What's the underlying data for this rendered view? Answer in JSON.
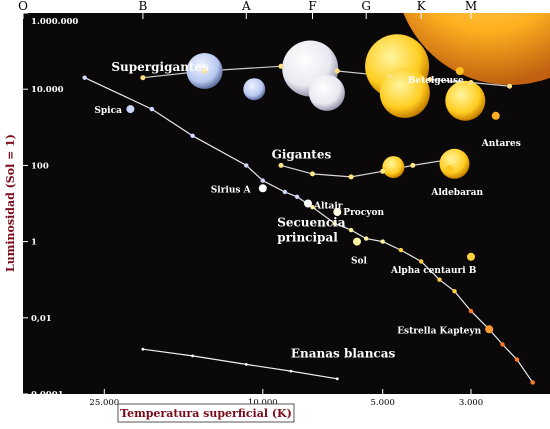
{
  "chart_data": {
    "type": "scatter",
    "xlabel": "Temperatura superficial (K)",
    "ylabel": "Luminosidad (Sol = 1)",
    "x_scale": "log",
    "x_reversed": true,
    "xlim": [
      1900,
      40000
    ],
    "y_scale": "log",
    "ylim": [
      0.0001,
      1000000
    ],
    "x_ticks": [
      {
        "value": 25000,
        "label": "25.000"
      },
      {
        "value": 10000,
        "label": "10.000"
      },
      {
        "value": 5000,
        "label": "5.000"
      },
      {
        "value": 3000,
        "label": "3.000"
      }
    ],
    "y_ticks": [
      {
        "value": 1000000,
        "label": "1.000.000"
      },
      {
        "value": 10000,
        "label": "10.000"
      },
      {
        "value": 100,
        "label": "100"
      },
      {
        "value": 1,
        "label": "1"
      },
      {
        "value": 0.01,
        "label": "0,01"
      },
      {
        "value": 0.0001,
        "label": "0.0001"
      }
    ],
    "spectral_classes": [
      {
        "label": "O",
        "value": 40000
      },
      {
        "label": "B",
        "value": 20000
      },
      {
        "label": "A",
        "value": 11000
      },
      {
        "label": "F",
        "value": 7500
      },
      {
        "label": "G",
        "value": 5500
      },
      {
        "label": "K",
        "value": 4000
      },
      {
        "label": "M",
        "value": 3000
      }
    ],
    "regions": [
      {
        "name": "Supergigantes",
        "text_x": 24000,
        "text_y": 30000
      },
      {
        "name": "Gigantes",
        "text_x": 9500,
        "text_y": 150
      },
      {
        "name": "Secuencia principal",
        "text_x": 9200,
        "text_y": 2.5
      },
      {
        "name": "Enanas blancas",
        "text_x": 8500,
        "text_y": 0.0009
      }
    ],
    "series": [
      {
        "name": "Secuencia principal",
        "x": [
          28000,
          19000,
          15000,
          11000,
          10000,
          8800,
          8200,
          7500,
          6600,
          6000,
          5500,
          5000,
          4500,
          4000,
          3600,
          3300,
          3000,
          2700,
          2500,
          2300,
          2100
        ],
        "y": [
          20000,
          3000,
          600,
          100,
          40,
          20,
          15,
          8,
          3,
          2,
          1.2,
          1,
          0.6,
          0.3,
          0.1,
          0.05,
          0.015,
          0.005,
          0.002,
          0.0008,
          0.0002
        ]
      },
      {
        "name": "Gigantes",
        "x": [
          9000,
          7500,
          6000,
          5000,
          4200,
          3300
        ],
        "y": [
          100,
          60,
          50,
          70,
          100,
          150
        ]
      },
      {
        "name": "Supergigantes",
        "x": [
          20000,
          14000,
          9000,
          6500,
          4800,
          3800,
          3000,
          2400
        ],
        "y": [
          20000,
          30000,
          40000,
          30000,
          22000,
          18000,
          15000,
          12000
        ]
      },
      {
        "name": "Enanas blancas",
        "x": [
          20000,
          15000,
          11000,
          8500,
          6500
        ],
        "y": [
          0.0015,
          0.001,
          0.0006,
          0.0004,
          0.00025
        ]
      }
    ],
    "stars": [
      {
        "name": "Spica",
        "x": 21500,
        "y": 3000,
        "color": "#cdd8ff"
      },
      {
        "name": "Sirius A",
        "x": 10000,
        "y": 25,
        "color": "#ffffff"
      },
      {
        "name": "Altair",
        "x": 7700,
        "y": 10,
        "color": "#ffffff"
      },
      {
        "name": "Procyon",
        "x": 6500,
        "y": 6,
        "color": "#fffde8"
      },
      {
        "name": "Sol",
        "x": 5800,
        "y": 1,
        "color": "#fff4a0"
      },
      {
        "name": "Alpha centauri B",
        "x": 3000,
        "y": 0.4,
        "color": "#ffd040"
      },
      {
        "name": "Estrella Kapteyn",
        "x": 2700,
        "y": 0.005,
        "color": "#ff9a30"
      },
      {
        "name": "Aldebaran",
        "x": 3400,
        "y": 80,
        "color": "#ffc820"
      },
      {
        "name": "Antares",
        "x": 2600,
        "y": 2000,
        "color": "#ffb020"
      },
      {
        "name": "Betelgeuse",
        "x": 3200,
        "y": 30000,
        "color": "#ffc020"
      }
    ],
    "grid": false,
    "legend": "none"
  }
}
